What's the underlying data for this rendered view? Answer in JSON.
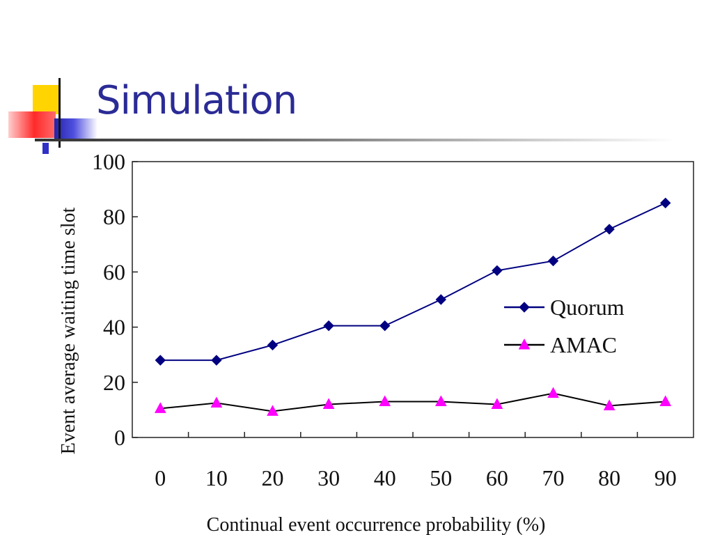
{
  "slide": {
    "title": "Simulation"
  },
  "colors": {
    "title": "#2b2b96",
    "quorum": "#000080",
    "amac_line": "#000000",
    "amac_marker": "#ff00ff"
  },
  "chart_data": {
    "type": "line",
    "xlabel": "Continual event occurrence probability (%)",
    "ylabel": "Event average waiting time slot",
    "categories": [
      "0",
      "10",
      "20",
      "30",
      "40",
      "50",
      "60",
      "70",
      "80",
      "90"
    ],
    "ylim": [
      0,
      100
    ],
    "yticks": [
      "0",
      "20",
      "40",
      "60",
      "80",
      "100"
    ],
    "grid": false,
    "legend_position": "right-middle",
    "series": [
      {
        "name": "Quorum",
        "marker": "diamond",
        "values": [
          28,
          28,
          33.5,
          40.5,
          40.5,
          50,
          60.5,
          64,
          75.5,
          85
        ]
      },
      {
        "name": "AMAC",
        "marker": "triangle",
        "values": [
          10.5,
          12.5,
          9.5,
          12,
          13,
          13,
          12,
          16,
          11.5,
          13
        ]
      }
    ]
  }
}
